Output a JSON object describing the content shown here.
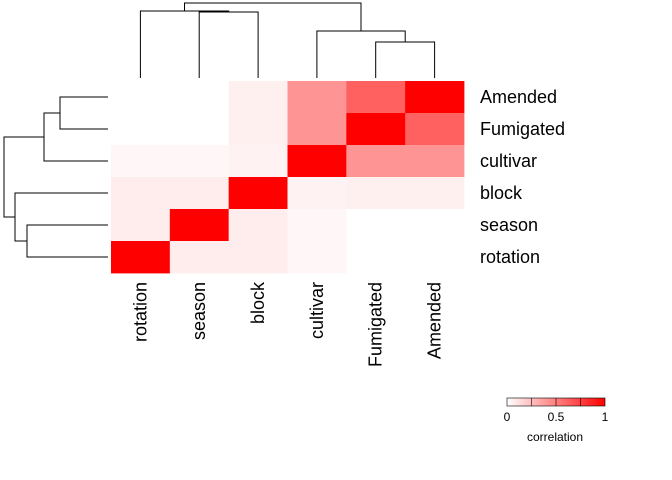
{
  "chart_data": {
    "type": "heatmap",
    "title": "",
    "xlabel": "",
    "ylabel": "",
    "x_categories": [
      "rotation",
      "season",
      "block",
      "cultivar",
      "Fumigated",
      "Amended"
    ],
    "y_categories": [
      "Amended",
      "Fumigated",
      "cultivar",
      "block",
      "season",
      "rotation"
    ],
    "values": [
      [
        0.0,
        0.0,
        0.06,
        0.42,
        0.62,
        1.0
      ],
      [
        0.0,
        0.0,
        0.06,
        0.42,
        1.0,
        0.62
      ],
      [
        0.03,
        0.03,
        0.05,
        1.0,
        0.42,
        0.42
      ],
      [
        0.07,
        0.07,
        1.0,
        0.05,
        0.06,
        0.06
      ],
      [
        0.07,
        1.0,
        0.07,
        0.03,
        0.0,
        0.0
      ],
      [
        1.0,
        0.07,
        0.07,
        0.03,
        0.0,
        0.0
      ]
    ],
    "color_scale": {
      "low_color": "#ffffff",
      "high_color": "#ff0000",
      "range": [
        0,
        1
      ],
      "ticks": [
        "0",
        "0.5",
        "1"
      ],
      "tick_values": [
        0,
        0.5,
        1
      ],
      "label": "correlation"
    },
    "dendrograms": "row and column"
  }
}
